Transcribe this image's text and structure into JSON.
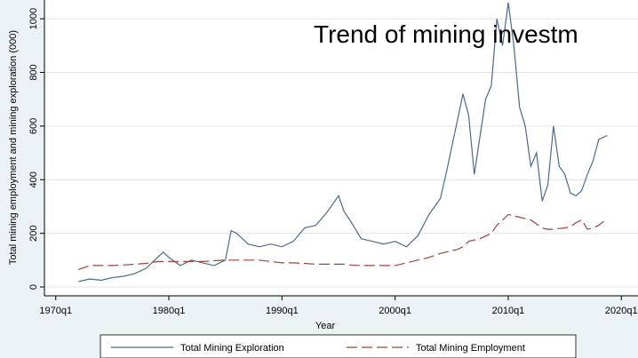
{
  "chart_data": {
    "type": "line",
    "title": "Trend of mining investm",
    "x_label": "Year",
    "y_label": "Total mining employment and mining exploration (000)",
    "x": [
      1972,
      1973,
      1974,
      1975,
      1976,
      1977,
      1978,
      1979,
      1979.5,
      1980,
      1981,
      1982,
      1983,
      1984,
      1985,
      1985.5,
      1986,
      1987,
      1988,
      1989,
      1990,
      1991,
      1992,
      1993,
      1994,
      1995,
      1995.5,
      1996,
      1997,
      1998,
      1999,
      2000,
      2001,
      2002,
      2003,
      2004,
      2004.5,
      2005,
      2005.5,
      2006,
      2006.5,
      2007,
      2007.5,
      2008,
      2008.5,
      2009,
      2009.5,
      2010,
      2010.5,
      2011,
      2011.5,
      2012,
      2012.5,
      2013,
      2013.5,
      2014,
      2014.5,
      2015,
      2015.5,
      2016,
      2016.5,
      2017,
      2017.5,
      2018,
      2018.75
    ],
    "series": [
      {
        "name": "Total Mining Exploration",
        "color": "#4a6a8a",
        "dash": false,
        "values": [
          20,
          30,
          25,
          35,
          40,
          50,
          70,
          110,
          130,
          110,
          80,
          100,
          90,
          80,
          100,
          210,
          200,
          160,
          150,
          160,
          150,
          170,
          220,
          230,
          280,
          340,
          280,
          250,
          180,
          170,
          160,
          170,
          150,
          190,
          270,
          330,
          420,
          520,
          620,
          720,
          640,
          420,
          560,
          700,
          750,
          1000,
          900,
          1060,
          900,
          670,
          600,
          450,
          500,
          320,
          380,
          600,
          450,
          420,
          350,
          340,
          360,
          420,
          470,
          550,
          565
        ]
      },
      {
        "name": "Total Mining Employment",
        "color": "#a3423c",
        "dash": true,
        "values": [
          65,
          80,
          80,
          80,
          82,
          85,
          88,
          95,
          95,
          95,
          95,
          95,
          95,
          98,
          100,
          100,
          100,
          100,
          100,
          95,
          90,
          90,
          88,
          85,
          85,
          85,
          85,
          82,
          80,
          80,
          80,
          80,
          90,
          100,
          110,
          125,
          130,
          135,
          140,
          150,
          170,
          175,
          180,
          190,
          200,
          230,
          250,
          270,
          265,
          260,
          255,
          250,
          235,
          220,
          215,
          215,
          218,
          220,
          225,
          240,
          250,
          215,
          220,
          230,
          255
        ]
      }
    ],
    "xlim": [
      1969,
      2021
    ],
    "xticks": [
      {
        "value": 1970,
        "label": "1970q1"
      },
      {
        "value": 1980,
        "label": "1980q1"
      },
      {
        "value": 1990,
        "label": "1990q1"
      },
      {
        "value": 2000,
        "label": "2000q1"
      },
      {
        "value": 2010,
        "label": "2010q1"
      },
      {
        "value": 2020,
        "label": "2020q1"
      }
    ],
    "ylim": [
      -33,
      1070
    ],
    "yticks": [
      0,
      200,
      400,
      600,
      800,
      1000
    ],
    "grid": true,
    "legend": "bottom"
  }
}
